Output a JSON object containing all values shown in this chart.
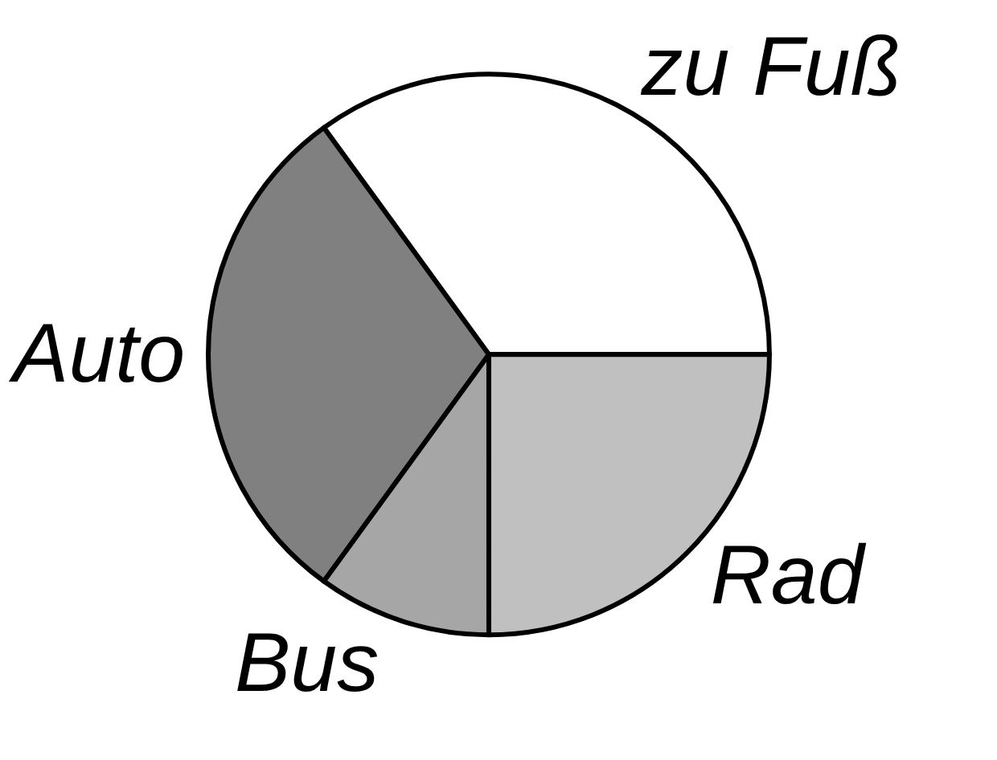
{
  "chart_data": {
    "type": "pie",
    "categories": [
      "zu Fuß",
      "Auto",
      "Bus",
      "Rad"
    ],
    "values": [
      35,
      30,
      10,
      25
    ],
    "colors": [
      "#ffffff",
      "#808080",
      "#a6a6a6",
      "#c0c0c0"
    ]
  }
}
